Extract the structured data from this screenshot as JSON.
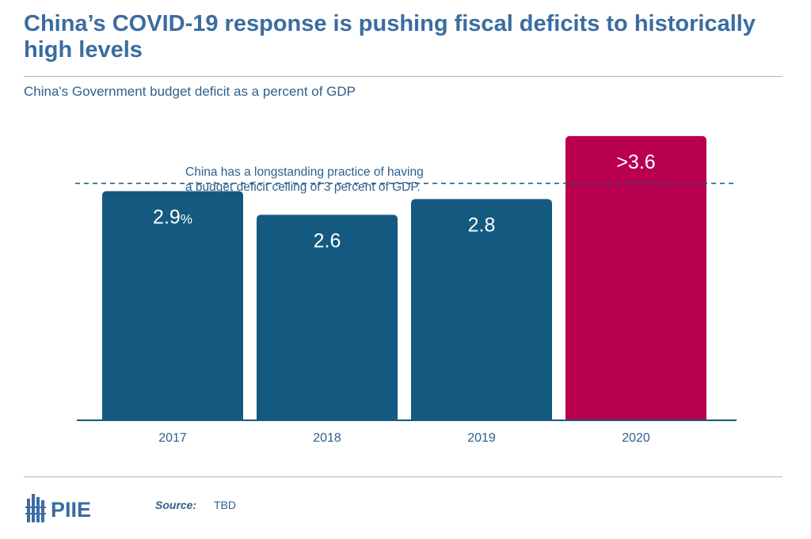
{
  "title": "China’s COVID-19 response is pushing fiscal deficits to historically high levels",
  "subtitle": "China's Government budget deficit as a percent of GDP",
  "annotation": {
    "line1": "China has a longstanding practice of having",
    "line2": "a budget deficit ceiling of 3 percent of GDP."
  },
  "chart_data": {
    "type": "bar",
    "categories": [
      "2017",
      "2018",
      "2019",
      "2020"
    ],
    "values": [
      2.9,
      2.6,
      2.8,
      3.6
    ],
    "data_labels": [
      "2.9",
      "2.6",
      "2.8",
      ">3.6"
    ],
    "first_label_suffix": "%",
    "reference_line": {
      "value": 3.0
    },
    "ylim": [
      0,
      3.75
    ],
    "colors": [
      "#14597f",
      "#14597f",
      "#14597f",
      "#b8004f"
    ]
  },
  "footer": {
    "logo_text": "PIIE",
    "source_label": "Source:",
    "source_text": "TBD"
  },
  "colors": {
    "accent": "#3b6ca0",
    "bar": "#14597f",
    "highlight": "#b8004f"
  }
}
